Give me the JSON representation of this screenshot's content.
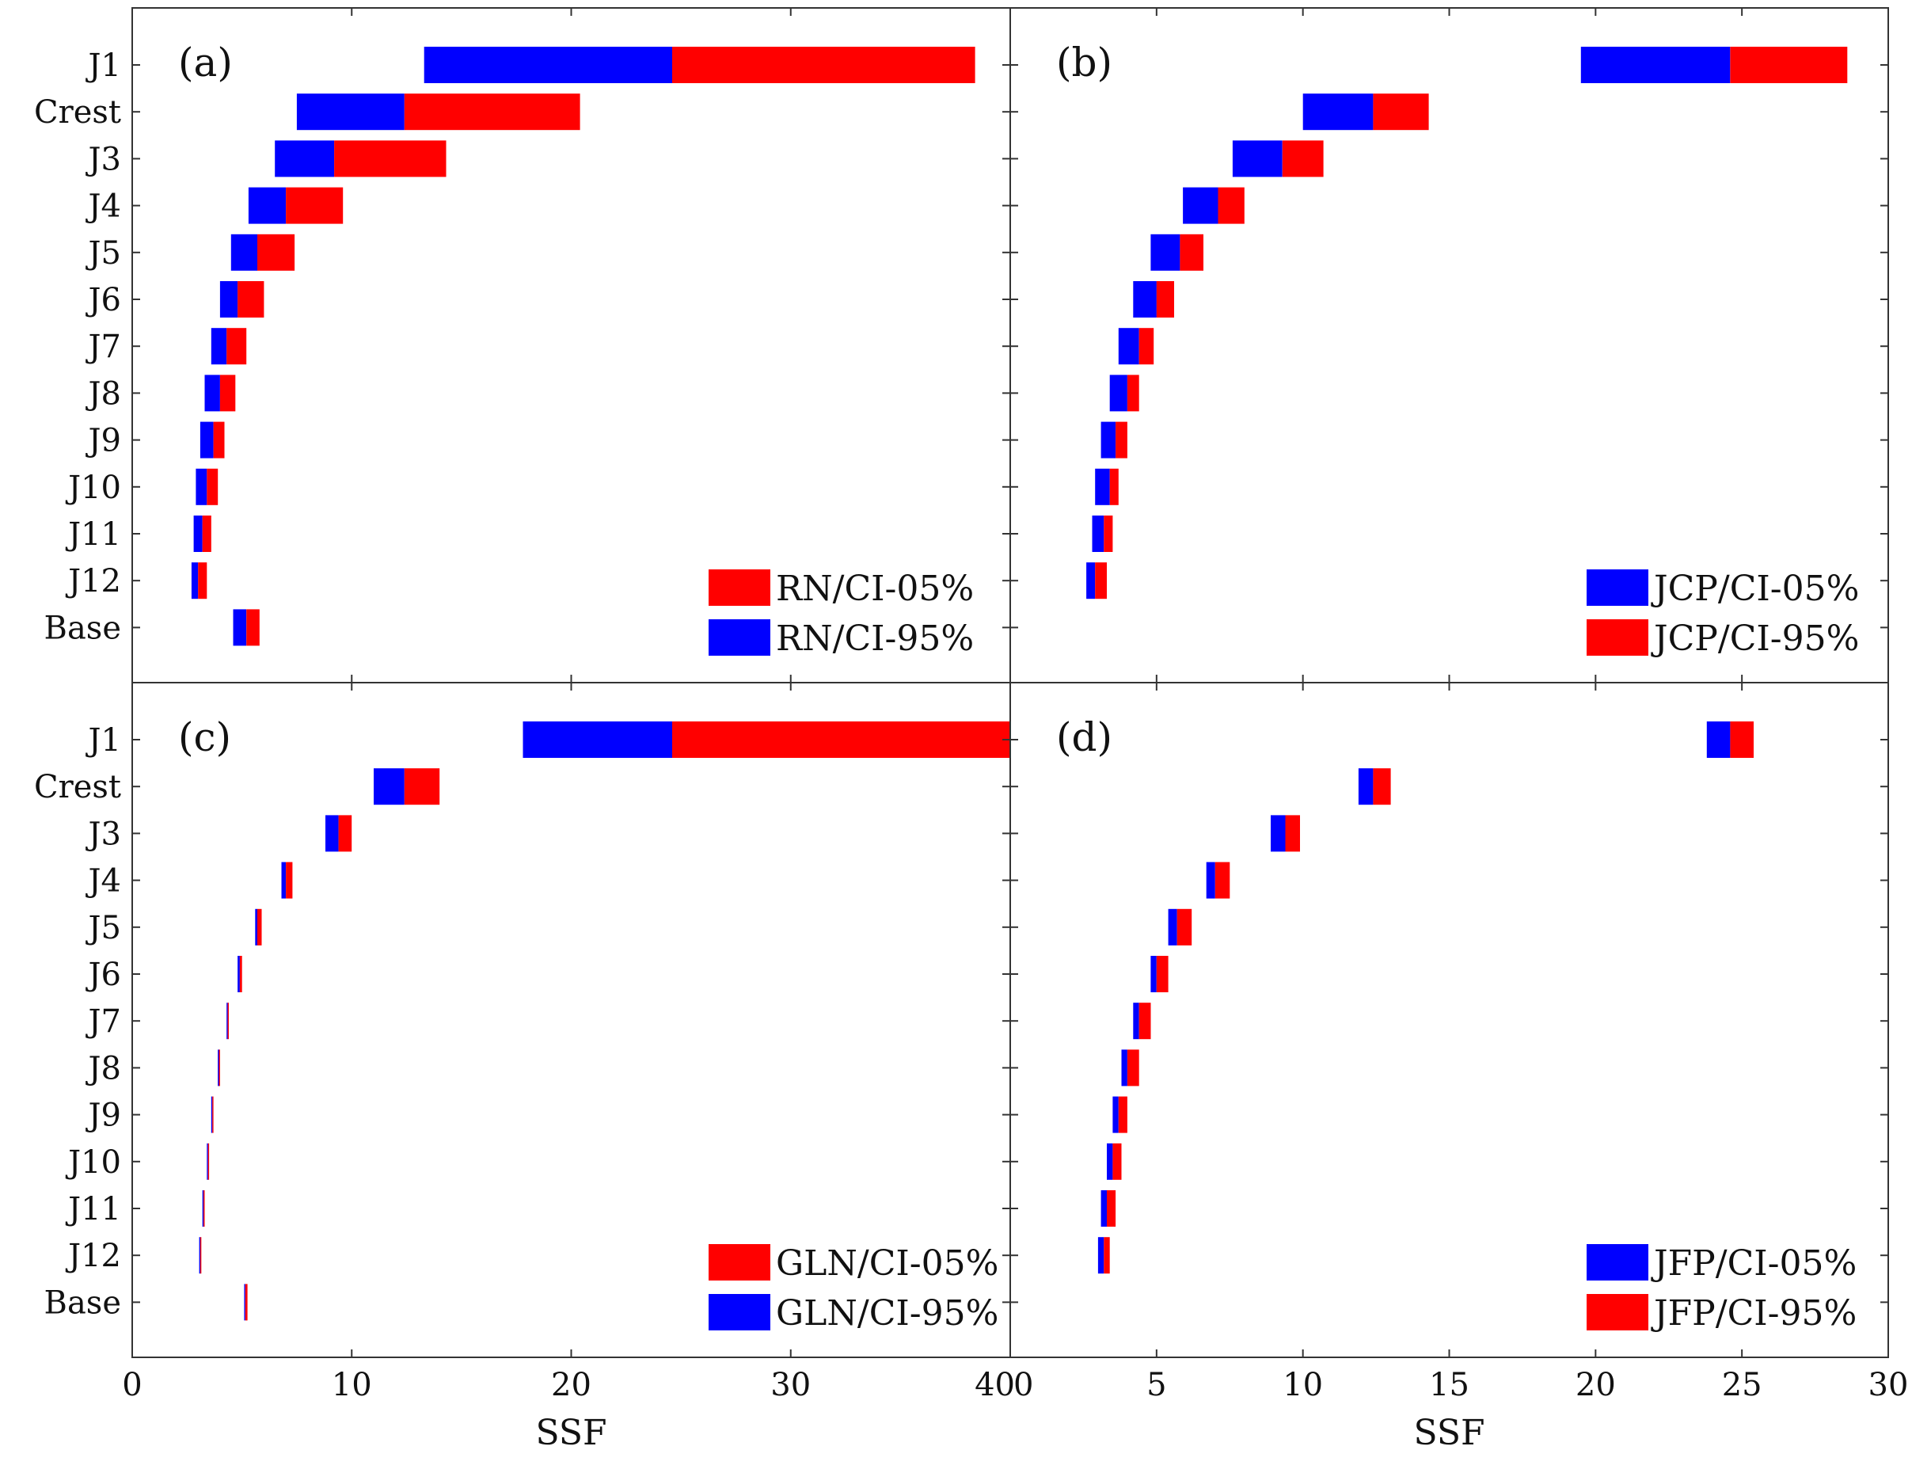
{
  "chart_data": [
    {
      "type": "bar",
      "orientation": "horizontal",
      "panel_label": "(a)",
      "categories": [
        "J1",
        "Crest",
        "J3",
        "J4",
        "J5",
        "J6",
        "J7",
        "J8",
        "J9",
        "J10",
        "J11",
        "J12",
        "Base"
      ],
      "xlim": [
        0,
        40
      ],
      "xticks": [
        0,
        10,
        20,
        30,
        40
      ],
      "xlabel": "",
      "series": [
        {
          "name": "RN/CI-95%",
          "color": "#0000ff",
          "start": [
            13.3,
            7.5,
            6.5,
            5.3,
            4.5,
            4.0,
            3.6,
            3.3,
            3.1,
            2.9,
            2.8,
            2.7,
            4.6
          ],
          "end": [
            24.6,
            12.4,
            9.2,
            7.0,
            5.7,
            4.8,
            4.3,
            4.0,
            3.7,
            3.4,
            3.2,
            3.0,
            5.2
          ]
        },
        {
          "name": "RN/CI-05%",
          "color": "#ff0000",
          "start": [
            24.6,
            12.4,
            9.2,
            7.0,
            5.7,
            4.8,
            4.3,
            4.0,
            3.7,
            3.4,
            3.2,
            3.0,
            5.2
          ],
          "end": [
            38.4,
            20.4,
            14.3,
            9.6,
            7.4,
            6.0,
            5.2,
            4.7,
            4.2,
            3.9,
            3.6,
            3.4,
            5.8
          ]
        }
      ],
      "legend": {
        "location": "bottom-right",
        "entries": [
          {
            "label": "RN/CI-05%",
            "color": "#ff0000"
          },
          {
            "label": "RN/CI-95%",
            "color": "#0000ff"
          }
        ]
      }
    },
    {
      "type": "bar",
      "orientation": "horizontal",
      "panel_label": "(b)",
      "categories": [
        "J1",
        "Crest",
        "J3",
        "J4",
        "J5",
        "J6",
        "J7",
        "J8",
        "J9",
        "J10",
        "J11",
        "J12",
        "Base"
      ],
      "xlim": [
        0,
        30
      ],
      "xticks": [
        0,
        5,
        10,
        15,
        20,
        25,
        30
      ],
      "xlabel": "",
      "series": [
        {
          "name": "JCP/CI-05%",
          "color": "#0000ff",
          "start": [
            19.5,
            10.0,
            7.6,
            5.9,
            4.8,
            4.2,
            3.7,
            3.4,
            3.1,
            2.9,
            2.8,
            2.6
          ],
          "end": [
            24.6,
            12.4,
            9.3,
            7.1,
            5.8,
            5.0,
            4.4,
            4.0,
            3.6,
            3.4,
            3.2,
            2.9
          ]
        },
        {
          "name": "JCP/CI-95%",
          "color": "#ff0000",
          "start": [
            24.6,
            12.4,
            9.3,
            7.1,
            5.8,
            5.0,
            4.4,
            4.0,
            3.6,
            3.4,
            3.2,
            2.9
          ],
          "end": [
            28.6,
            14.3,
            10.7,
            8.0,
            6.6,
            5.6,
            4.9,
            4.4,
            4.0,
            3.7,
            3.5,
            3.3
          ]
        }
      ],
      "legend": {
        "location": "bottom-right",
        "entries": [
          {
            "label": "JCP/CI-05%",
            "color": "#0000ff"
          },
          {
            "label": "JCP/CI-95%",
            "color": "#ff0000"
          }
        ]
      }
    },
    {
      "type": "bar",
      "orientation": "horizontal",
      "panel_label": "(c)",
      "categories": [
        "J1",
        "Crest",
        "J3",
        "J4",
        "J5",
        "J6",
        "J7",
        "J8",
        "J9",
        "J10",
        "J11",
        "J12",
        "Base"
      ],
      "xlim": [
        0,
        40
      ],
      "xticks": [
        0,
        10,
        20,
        30,
        40
      ],
      "xlabel": "SSF",
      "series": [
        {
          "name": "GLN/CI-95%",
          "color": "#0000ff",
          "start": [
            17.8,
            11.0,
            8.8,
            6.8,
            5.6,
            4.8,
            4.3,
            3.9,
            3.6,
            3.4,
            3.2,
            3.05,
            5.1
          ],
          "end": [
            24.6,
            12.4,
            9.4,
            7.0,
            5.7,
            4.9,
            4.35,
            3.95,
            3.65,
            3.45,
            3.25,
            3.1,
            5.15
          ]
        },
        {
          "name": "GLN/CI-05%",
          "color": "#ff0000",
          "start": [
            24.6,
            12.4,
            9.4,
            7.0,
            5.7,
            4.9,
            4.35,
            3.95,
            3.65,
            3.45,
            3.25,
            3.1,
            5.15
          ],
          "end": [
            40.0,
            14.0,
            10.0,
            7.3,
            5.9,
            5.0,
            4.4,
            4.0,
            3.7,
            3.5,
            3.3,
            3.15,
            5.25
          ]
        }
      ],
      "legend": {
        "location": "bottom-right",
        "entries": [
          {
            "label": "GLN/CI-05%",
            "color": "#ff0000"
          },
          {
            "label": "GLN/CI-95%",
            "color": "#0000ff"
          }
        ]
      }
    },
    {
      "type": "bar",
      "orientation": "horizontal",
      "panel_label": "(d)",
      "categories": [
        "J1",
        "Crest",
        "J3",
        "J4",
        "J5",
        "J6",
        "J7",
        "J8",
        "J9",
        "J10",
        "J11",
        "J12",
        "Base"
      ],
      "xlim": [
        0,
        30
      ],
      "xticks": [
        0,
        5,
        10,
        15,
        20,
        25,
        30
      ],
      "xlabel": "SSF",
      "series": [
        {
          "name": "JFP/CI-05%",
          "color": "#0000ff",
          "start": [
            23.8,
            11.9,
            8.9,
            6.7,
            5.4,
            4.8,
            4.2,
            3.8,
            3.5,
            3.3,
            3.1,
            3.0
          ],
          "end": [
            24.6,
            12.4,
            9.4,
            7.0,
            5.7,
            5.0,
            4.4,
            4.0,
            3.7,
            3.5,
            3.3,
            3.2
          ]
        },
        {
          "name": "JFP/CI-95%",
          "color": "#ff0000",
          "start": [
            24.6,
            12.4,
            9.4,
            7.0,
            5.7,
            5.0,
            4.4,
            4.0,
            3.7,
            3.5,
            3.3,
            3.2
          ],
          "end": [
            25.4,
            13.0,
            9.9,
            7.5,
            6.2,
            5.4,
            4.8,
            4.4,
            4.0,
            3.8,
            3.6,
            3.4
          ]
        }
      ],
      "legend": {
        "location": "bottom-right",
        "entries": [
          {
            "label": "JFP/CI-05%",
            "color": "#0000ff"
          },
          {
            "label": "JFP/CI-95%",
            "color": "#ff0000"
          }
        ]
      }
    }
  ]
}
